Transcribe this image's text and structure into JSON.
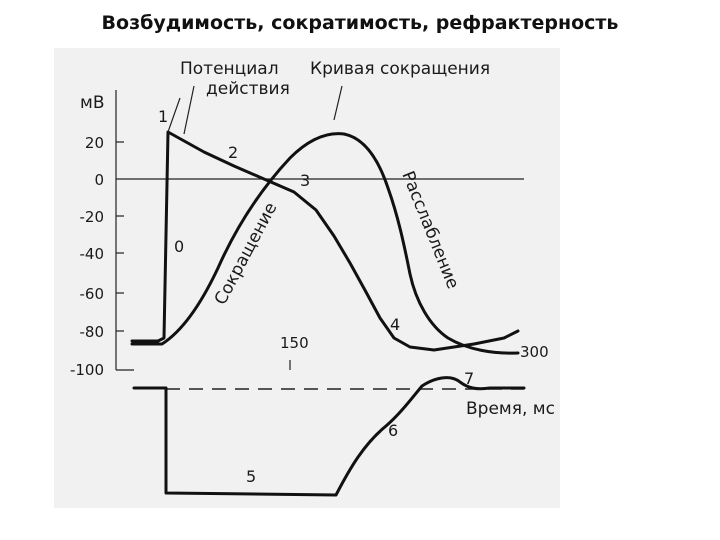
{
  "title": "Возбудимость, сократимость, рефрактерность",
  "diagram": {
    "y_unit": "мВ",
    "y_ticks": [
      "20",
      "0",
      "-20",
      "-40",
      "-60",
      "-80",
      "-100"
    ],
    "x_ticks": [
      "150",
      "300"
    ],
    "x_axis_label": "Время, мс",
    "labels": {
      "action_potential_line1": "Потенциал",
      "action_potential_line2": "действия",
      "contraction_curve": "Кривая сокращения",
      "contraction": "Сокращение",
      "relaxation": "Расслабление"
    },
    "phase_numbers": [
      "1",
      "2",
      "3",
      "0",
      "4",
      "5",
      "6",
      "7"
    ]
  }
}
